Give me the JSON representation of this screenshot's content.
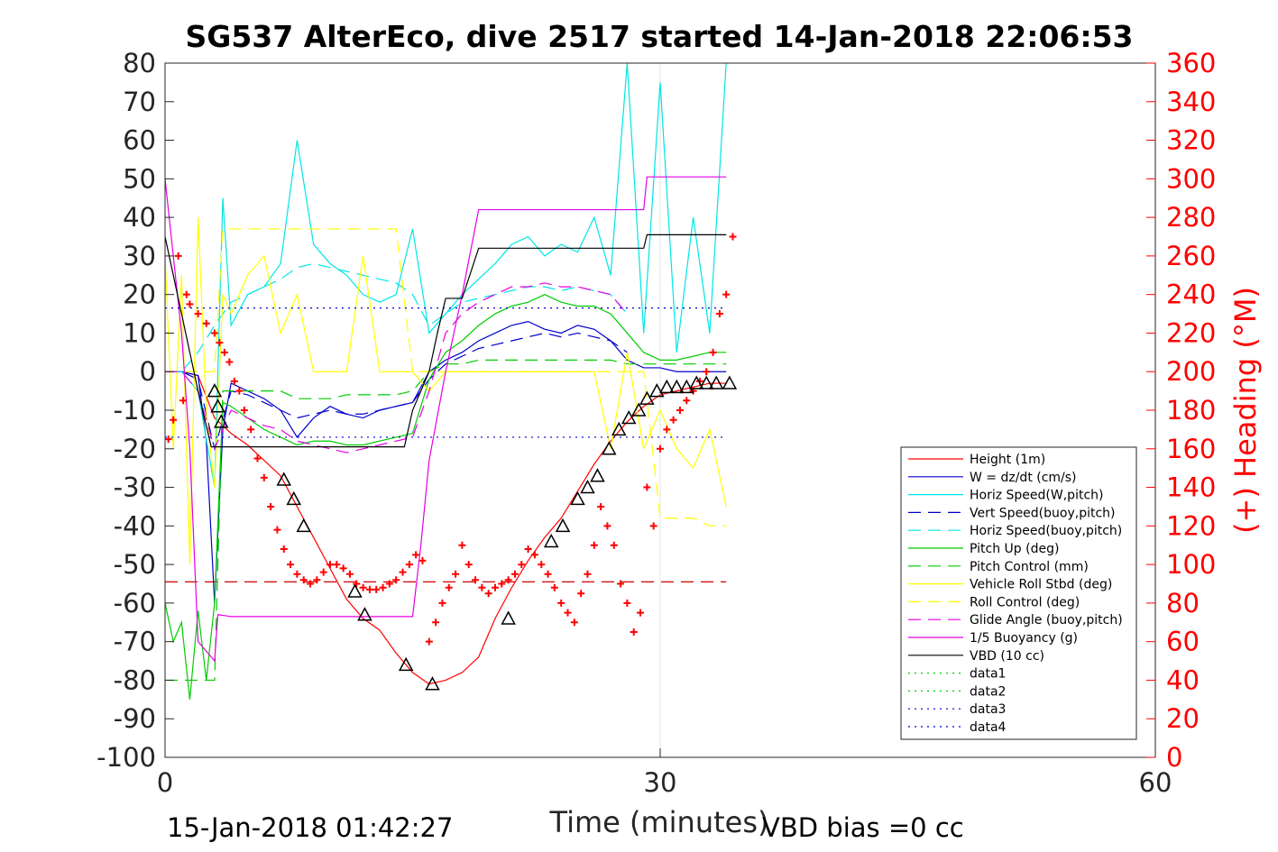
{
  "chart_data": {
    "type": "line",
    "title": "SG537 AlterEco, dive 2517 started 14-Jan-2018 22:06:53",
    "xlabel": "Time (minutes)",
    "ylabel_right": "(+) Heading (°M)",
    "xlim": [
      0,
      60
    ],
    "ylim": [
      -100,
      80
    ],
    "ylim_right": [
      0,
      360
    ],
    "xticks": [
      "0",
      "30",
      "60"
    ],
    "yticks": [
      "80",
      "70",
      "60",
      "50",
      "40",
      "30",
      "20",
      "10",
      "0",
      "-10",
      "-20",
      "-30",
      "-40",
      "-50",
      "-60",
      "-70",
      "-80",
      "-90",
      "-100"
    ],
    "yticks_right": [
      "360",
      "340",
      "320",
      "300",
      "280",
      "260",
      "240",
      "220",
      "200",
      "180",
      "160",
      "140",
      "120",
      "100",
      "80",
      "60",
      "40",
      "20",
      "0"
    ],
    "grid": "x-major-only",
    "legend_position": "lower-right",
    "footer_left": "15-Jan-2018 01:42:27",
    "footer_right": "VBD bias =0 cc",
    "series": [
      {
        "name": "Height (1m)",
        "color": "#ff0000",
        "style": "solid",
        "x": [
          0,
          1,
          2,
          3,
          4,
          5,
          6,
          7,
          8,
          9,
          10,
          11,
          12,
          13,
          14,
          15,
          16,
          17,
          18,
          19,
          20,
          21,
          22,
          23,
          24,
          25,
          26,
          27,
          28,
          29,
          30,
          31,
          32,
          33,
          34
        ],
        "y": [
          0,
          0,
          -1,
          -12,
          -16,
          -19,
          -23,
          -27,
          -35,
          -43,
          -51,
          -59,
          -64,
          -67,
          -73,
          -78,
          -81,
          -80,
          -78,
          -74,
          -64,
          -56,
          -49,
          -43,
          -38,
          -31,
          -24,
          -18,
          -13,
          -9,
          -6,
          -5,
          -4,
          -3,
          -3
        ]
      },
      {
        "name": "W = dz/dt (cm/s)",
        "color": "#0000cc",
        "style": "solid",
        "x": [
          0,
          1,
          2,
          2.5,
          3,
          3.5,
          4,
          5,
          6,
          7,
          8,
          9,
          10,
          11,
          12,
          13,
          14,
          15,
          16,
          17,
          18,
          19,
          20,
          21,
          22,
          23,
          24,
          25,
          26,
          27,
          28,
          29,
          30,
          31,
          32,
          33,
          34
        ],
        "y": [
          0,
          0,
          -1,
          -18,
          -60,
          -15,
          -3,
          -5,
          -7,
          -10,
          -17,
          -12,
          -9,
          -11,
          -12,
          -10,
          -9,
          -8,
          0,
          3,
          5,
          8,
          10,
          12,
          13,
          11,
          10,
          12,
          11,
          8,
          3,
          1,
          1,
          0,
          0,
          0,
          0
        ]
      },
      {
        "name": "Horiz Speed(W,pitch)",
        "color": "#00e5e5",
        "style": "solid",
        "x": [
          0,
          1,
          2,
          3,
          3.5,
          4,
          5,
          6,
          7,
          8,
          9,
          10,
          11,
          12,
          13,
          14,
          15,
          16,
          17,
          18,
          19,
          20,
          21,
          22,
          23,
          24,
          25,
          26,
          27,
          28,
          29,
          30,
          31,
          32,
          33,
          34
        ],
        "y": [
          0,
          0,
          -5,
          -30,
          45,
          12,
          20,
          22,
          28,
          60,
          33,
          28,
          25,
          20,
          18,
          20,
          37,
          10,
          15,
          20,
          24,
          28,
          33,
          35,
          30,
          33,
          31,
          40,
          25,
          80,
          10,
          75,
          5,
          40,
          10,
          80
        ]
      },
      {
        "name": "Vert Speed(buoy,pitch)",
        "color": "#0000cc",
        "style": "dashed",
        "x": [
          0,
          1,
          2,
          3,
          4,
          5,
          6,
          7,
          8,
          9,
          10,
          11,
          12,
          13,
          14,
          15,
          16,
          17,
          18,
          19,
          20,
          21,
          22,
          23,
          24,
          25,
          26,
          27,
          28
        ],
        "y": [
          0,
          0,
          -2,
          -20,
          -5,
          -6,
          -8,
          -10,
          -12,
          -11,
          -10,
          -11,
          -11,
          -10,
          -9,
          -8,
          -2,
          2,
          4,
          6,
          7,
          8,
          9,
          10,
          9,
          10,
          9,
          8,
          5
        ]
      },
      {
        "name": "Horiz Speed(buoy,pitch)",
        "color": "#00e5e5",
        "style": "dashed",
        "x": [
          0,
          1,
          2,
          3,
          4,
          5,
          6,
          7,
          8,
          9,
          10,
          11,
          12,
          13,
          14,
          15,
          16,
          17,
          18,
          19,
          20,
          21,
          22,
          23,
          24,
          25,
          26,
          27,
          28
        ],
        "y": [
          0,
          0,
          5,
          12,
          18,
          20,
          22,
          24,
          27,
          28,
          27,
          26,
          25,
          24,
          23,
          20,
          12,
          15,
          18,
          19,
          20,
          21,
          22,
          22,
          21,
          22,
          21,
          20,
          15
        ]
      },
      {
        "name": "Pitch Up (deg)",
        "color": "#00cc00",
        "style": "solid",
        "x": [
          0,
          0.5,
          1,
          1.5,
          2,
          2.5,
          3,
          3.5,
          4,
          5,
          6,
          7,
          8,
          9,
          10,
          11,
          12,
          13,
          14,
          15,
          16,
          17,
          18,
          19,
          20,
          21,
          22,
          23,
          24,
          25,
          26,
          27,
          28,
          29,
          30,
          31,
          32,
          33,
          34
        ],
        "y": [
          -60,
          -70,
          -65,
          -85,
          -62,
          -80,
          -60,
          -8,
          -9,
          -12,
          -15,
          -17,
          -19,
          -18,
          -18,
          -19,
          -19,
          -18,
          -17,
          -16,
          -2,
          5,
          8,
          12,
          15,
          17,
          18,
          20,
          18,
          17,
          17,
          15,
          10,
          5,
          3,
          3,
          4,
          5,
          5
        ]
      },
      {
        "name": "Pitch Control (mm)",
        "color": "#00cc00",
        "style": "dashed",
        "x": [
          0,
          1,
          2,
          3,
          3.5,
          4,
          5,
          6,
          7,
          8,
          9,
          10,
          11,
          12,
          13,
          14,
          15,
          16,
          17,
          18,
          19,
          20,
          21,
          22,
          23,
          24,
          25,
          26,
          27,
          28,
          29,
          30,
          31,
          32,
          33,
          34
        ],
        "y": [
          -80,
          -80,
          -80,
          -80,
          -5,
          -5,
          -5,
          -5,
          -5,
          -7,
          -7,
          -7,
          -6,
          -6,
          -6,
          -6,
          -5,
          0,
          2,
          2,
          3,
          3,
          3,
          3,
          3,
          3,
          3,
          3,
          3,
          2,
          2,
          2,
          2,
          2,
          2,
          2
        ]
      },
      {
        "name": "Vehicle Roll Stbd (deg)",
        "color": "#ffff00",
        "style": "solid",
        "x": [
          0,
          0.5,
          1,
          1.5,
          2,
          2.5,
          3,
          3.5,
          4,
          5,
          6,
          7,
          8,
          9,
          10,
          11,
          12,
          13,
          14,
          15,
          16,
          17,
          18,
          19,
          20,
          21,
          22,
          23,
          24,
          25,
          26,
          27,
          28,
          29,
          30,
          31,
          32,
          33,
          34
        ],
        "y": [
          30,
          -20,
          25,
          -50,
          40,
          -10,
          -30,
          20,
          15,
          25,
          30,
          10,
          20,
          0,
          0,
          0,
          30,
          0,
          0,
          0,
          -5,
          0,
          0,
          0,
          0,
          0,
          0,
          0,
          0,
          0,
          0,
          -20,
          5,
          -20,
          -10,
          -20,
          -25,
          -15,
          -35
        ]
      },
      {
        "name": "Roll Control (deg)",
        "color": "#ffff00",
        "style": "dashed",
        "x": [
          0,
          1,
          2,
          3,
          3.5,
          4,
          5,
          6,
          7,
          8,
          9,
          10,
          11,
          12,
          13,
          14,
          15,
          16,
          17,
          18,
          19,
          20,
          21,
          22,
          23,
          24,
          25,
          26,
          27,
          28,
          29,
          30,
          31,
          32,
          33,
          34
        ],
        "y": [
          0,
          0,
          0,
          0,
          37,
          37,
          37,
          37,
          37,
          37,
          37,
          37,
          37,
          37,
          37,
          37,
          0,
          0,
          0,
          0,
          0,
          0,
          0,
          0,
          0,
          0,
          0,
          0,
          0,
          0,
          0,
          -38,
          -38,
          -38,
          -40,
          -40
        ]
      },
      {
        "name": "Glide Angle (buoy,pitch)",
        "color": "#e500e5",
        "style": "dashed",
        "x": [
          0,
          1,
          2,
          3,
          4,
          5,
          6,
          7,
          8,
          9,
          10,
          11,
          12,
          13,
          14,
          15,
          16,
          17,
          18,
          19,
          20,
          21,
          22,
          23,
          24,
          25,
          26,
          27,
          28
        ],
        "y": [
          0,
          0,
          -5,
          -20,
          -10,
          -12,
          -14,
          -15,
          -18,
          -19,
          -20,
          -21,
          -20,
          -19,
          -18,
          -17,
          -5,
          10,
          15,
          18,
          20,
          22,
          22,
          23,
          22,
          22,
          21,
          20,
          15
        ]
      },
      {
        "name": "1/5 Buoyancy (g)",
        "color": "#e500e5",
        "style": "solid",
        "x": [
          0,
          0.5,
          1,
          1.5,
          2,
          3,
          3.2,
          4,
          6,
          8,
          10,
          12,
          14,
          15,
          15.5,
          16,
          17,
          18,
          19,
          20,
          22,
          24,
          26,
          28,
          29,
          29.2,
          30,
          32,
          34
        ],
        "y": [
          50,
          30,
          10,
          -20,
          -70,
          -75,
          -63,
          -63.5,
          -63.5,
          -63.5,
          -63.5,
          -63.5,
          -63.5,
          -63.5,
          -45,
          -23,
          0,
          20,
          42,
          42,
          42,
          42,
          42,
          42,
          42,
          50.5,
          50.5,
          50.5,
          50.5
        ]
      },
      {
        "name": "VBD (10 cc)",
        "color": "#000000",
        "style": "solid",
        "x": [
          0,
          1,
          2,
          2.8,
          3,
          4,
          6,
          8,
          10,
          12,
          14,
          14.5,
          15,
          16,
          16.5,
          17,
          18,
          19,
          20,
          22,
          24,
          26,
          28,
          29,
          29.2,
          30,
          32,
          34
        ],
        "y": [
          35,
          15,
          -5,
          -19.5,
          -19.5,
          -19.5,
          -19.5,
          -19.5,
          -19.5,
          -19.5,
          -19.5,
          -19.5,
          -10,
          0,
          10,
          19,
          19,
          32,
          32,
          32,
          32,
          32,
          32,
          32,
          35.5,
          35.5,
          35.5,
          35.5
        ]
      },
      {
        "name": "data1",
        "color": "#00cc00",
        "style": "dotted",
        "x": [],
        "y": []
      },
      {
        "name": "data2",
        "color": "#00cc00",
        "style": "dotted",
        "x": [],
        "y": []
      },
      {
        "name": "data3",
        "color": "#0000cc",
        "style": "dotted",
        "x": [
          0,
          34
        ],
        "y": [
          16.5,
          16.5
        ]
      },
      {
        "name": "data4",
        "color": "#0000cc",
        "style": "dotted",
        "x": [
          0,
          34
        ],
        "y": [
          -17,
          -17
        ]
      }
    ],
    "reference_line": {
      "color": "#cc0000",
      "style": "dashed",
      "x": [
        0,
        34
      ],
      "y": [
        -54.5,
        -54.5
      ]
    },
    "heading_points": {
      "color": "#ff0000",
      "marker": "+",
      "axis": "right",
      "x": [
        0.2,
        0.5,
        0.8,
        1.1,
        1.3,
        1.5,
        2.0,
        2.5,
        3.0,
        3.3,
        3.6,
        3.9,
        4.2,
        4.5,
        4.8,
        5.2,
        5.6,
        6.0,
        6.4,
        6.8,
        7.2,
        7.6,
        8.0,
        8.4,
        8.8,
        9.2,
        9.6,
        10.0,
        10.4,
        10.8,
        11.2,
        11.6,
        12.0,
        12.4,
        12.8,
        13.2,
        13.6,
        14.0,
        14.4,
        14.8,
        15.2,
        15.6,
        16.0,
        16.4,
        16.8,
        17.2,
        17.6,
        18.0,
        18.4,
        18.8,
        19.2,
        19.6,
        20.0,
        20.4,
        20.8,
        21.2,
        21.6,
        22.0,
        22.4,
        22.8,
        23.2,
        23.6,
        24.0,
        24.4,
        24.8,
        25.2,
        25.6,
        26.0,
        26.4,
        26.8,
        27.2,
        27.6,
        28.0,
        28.4,
        28.8,
        29.2,
        29.6,
        30.0,
        30.4,
        30.8,
        31.2,
        31.6,
        32.0,
        32.4,
        32.8,
        33.2,
        33.6,
        34.0,
        34.4
      ],
      "y": [
        165,
        175,
        260,
        185,
        240,
        235,
        230,
        225,
        220,
        215,
        210,
        205,
        195,
        190,
        180,
        170,
        155,
        145,
        130,
        118,
        108,
        100,
        95,
        92,
        90,
        92,
        96,
        100,
        100,
        98,
        95,
        90,
        88,
        87,
        87,
        88,
        90,
        92,
        96,
        100,
        105,
        102,
        60,
        70,
        80,
        88,
        95,
        110,
        100,
        92,
        88,
        85,
        88,
        90,
        92,
        95,
        100,
        108,
        105,
        100,
        95,
        88,
        80,
        75,
        70,
        85,
        95,
        110,
        130,
        120,
        110,
        90,
        80,
        65,
        75,
        140,
        120,
        160,
        170,
        175,
        180,
        185,
        190,
        195,
        200,
        210,
        230,
        240,
        270
      ]
    },
    "markers": {
      "color": "#000000",
      "marker": "triangle",
      "fill": "none",
      "x": [
        3.0,
        3.2,
        3.4,
        7.2,
        7.8,
        8.4,
        11.5,
        12.1,
        14.6,
        16.2,
        20.8,
        23.4,
        24.1,
        25.0,
        25.6,
        26.2,
        26.9,
        27.5,
        28.1,
        28.7,
        29.2,
        29.8,
        30.4,
        31.0,
        31.6,
        32.2,
        32.8,
        33.4,
        34.2
      ],
      "y": [
        -5,
        -9,
        -13,
        -28,
        -33,
        -40,
        -57,
        -63,
        -76,
        -81,
        -64,
        -44,
        -40,
        -33,
        -30,
        -27,
        -20,
        -15,
        -12,
        -10,
        -7,
        -5,
        -4,
        -4,
        -4,
        -3,
        -3,
        -3,
        -3
      ]
    }
  }
}
